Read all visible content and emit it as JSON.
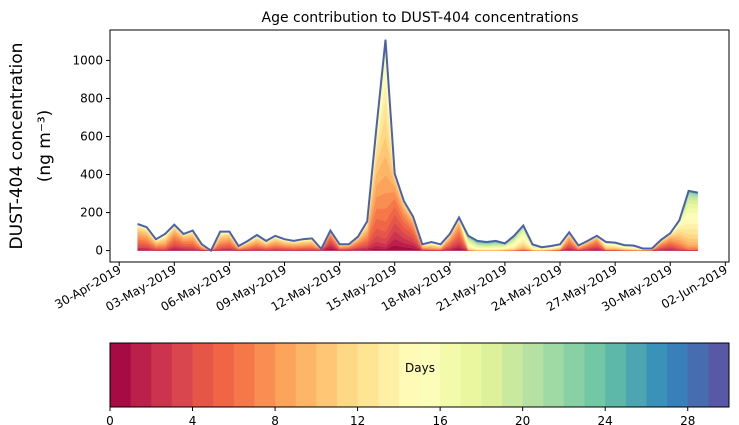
{
  "chart_data": {
    "type": "area",
    "stacked": true,
    "title": "Age contribution to DUST-404 concentrations",
    "ylabel_line1": "DUST-404 concentration",
    "ylabel_line2": "(ng m⁻³)",
    "xlabel": "",
    "ylim": [
      -60,
      1160
    ],
    "yticks": [
      0,
      200,
      400,
      600,
      800,
      1000
    ],
    "x_start": "2019-05-01T00:00",
    "x_step_hours": 12,
    "xlim_days_from_30apr": [
      -0.5,
      33.2
    ],
    "xtick_labels": [
      "30-Apr-2019",
      "03-May-2019",
      "06-May-2019",
      "09-May-2019",
      "12-May-2019",
      "15-May-2019",
      "18-May-2019",
      "21-May-2019",
      "24-May-2019",
      "27-May-2019",
      "30-May-2019",
      "02-Jun-2019"
    ],
    "xtick_days_from_30apr": [
      0,
      3,
      6,
      9,
      12,
      15,
      18,
      21,
      24,
      27,
      30,
      33
    ],
    "total": [
      140,
      123,
      60,
      87,
      136,
      87,
      105,
      33,
      0,
      100,
      100,
      24,
      51,
      82,
      51,
      78,
      60,
      51,
      60,
      64,
      9,
      105,
      33,
      33,
      73,
      154,
      640,
      1109,
      405,
      260,
      178,
      33,
      45,
      33,
      87,
      174,
      78,
      51,
      45,
      51,
      38,
      78,
      132,
      33,
      18,
      24,
      33,
      96,
      27,
      51,
      78,
      45,
      42,
      29,
      27,
      11,
      11,
      56,
      91,
      160,
      314,
      305
    ],
    "mean_age_days": [
      7,
      7,
      8,
      9,
      6,
      6,
      7,
      8,
      8,
      8,
      7,
      8,
      8,
      8,
      8,
      8,
      8,
      8,
      8,
      8,
      3,
      3,
      7,
      6,
      6,
      7,
      8,
      10,
      4,
      4,
      4,
      8,
      10,
      10,
      6,
      5,
      16,
      18,
      18,
      18,
      16,
      16,
      14,
      16,
      15,
      14,
      12,
      6,
      8,
      6,
      5,
      12,
      12,
      13,
      14,
      12,
      10,
      6,
      6,
      10,
      14,
      14
    ],
    "band_count": 30,
    "colorbar": {
      "label": "Days",
      "range": [
        0,
        30
      ],
      "tick_labels": [
        "0",
        "4",
        "8",
        "12",
        "16",
        "20",
        "24",
        "28"
      ],
      "tick_values": [
        0,
        4,
        8,
        12,
        16,
        20,
        24,
        28
      ]
    },
    "colormap_stops": [
      "#9e0142",
      "#d53e4f",
      "#f46d43",
      "#fdae61",
      "#fee08b",
      "#ffffbf",
      "#e6f598",
      "#abdda4",
      "#66c2a5",
      "#3288bd",
      "#5e4fa2"
    ],
    "outline_color": "#4a62ab"
  }
}
